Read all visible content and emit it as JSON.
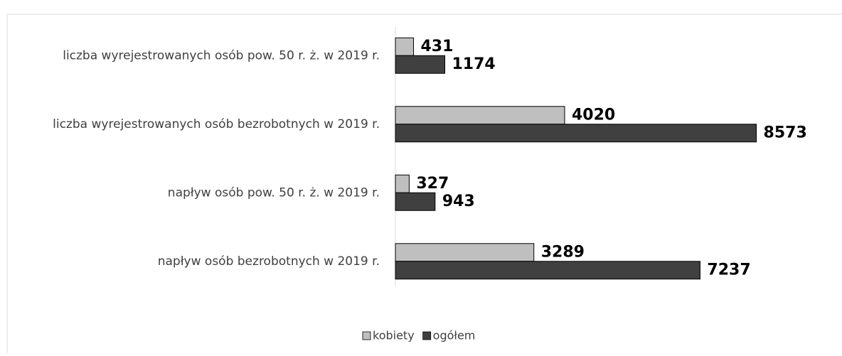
{
  "chart_data": {
    "type": "hbar",
    "categories": [
      "liczba wyrejestrowanych osób pow. 50 r. ż. w 2019 r.",
      "liczba wyrejestrowanych osób bezrobotnych w 2019 r.",
      "napływ osób pow. 50 r. ż. w 2019 r.",
      "napływ osób bezrobotnych w 2019 r."
    ],
    "series": [
      {
        "name": "kobiety",
        "color": "#bfbfbf",
        "values": [
          431,
          4020,
          327,
          3289
        ]
      },
      {
        "name": "ogółem",
        "color": "#404040",
        "values": [
          1174,
          8573,
          943,
          7237
        ]
      }
    ],
    "xlim": [
      0,
      10000
    ],
    "legend": "bottom"
  }
}
